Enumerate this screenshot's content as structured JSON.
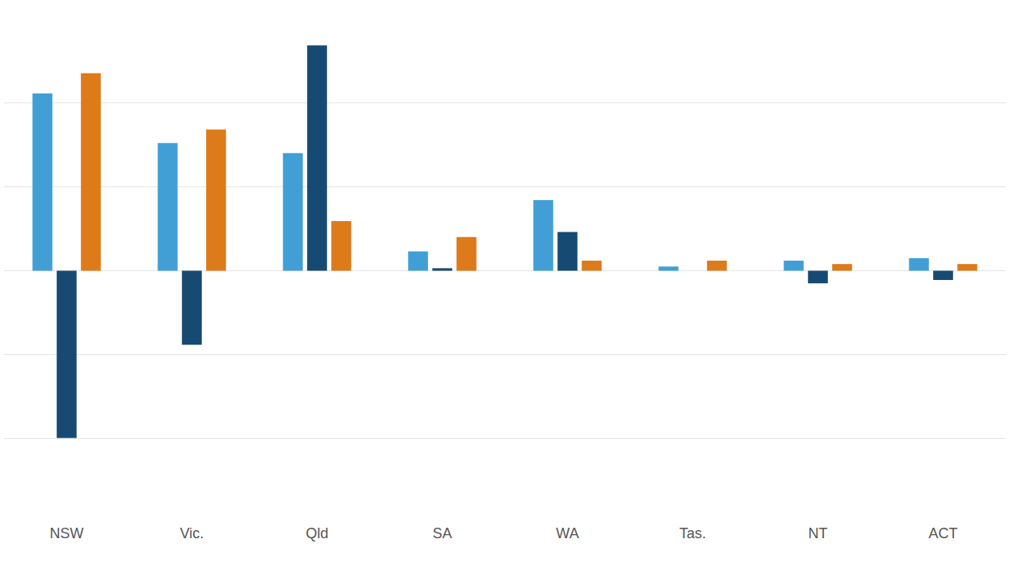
{
  "chart_data": {
    "type": "bar",
    "categories": [
      "NSW",
      "Vic.",
      "Qld",
      "SA",
      "WA",
      "Tas.",
      "NT",
      "ACT"
    ],
    "series": [
      {
        "color": "#419fd6",
        "values": [
          2.11,
          1.52,
          1.4,
          0.23,
          0.84,
          0.05,
          0.12,
          0.15
        ]
      },
      {
        "color": "#174a72",
        "values": [
          -1.99,
          -0.88,
          2.68,
          0.03,
          0.46,
          0,
          -0.15,
          -0.11
        ]
      },
      {
        "color": "#dd7a1a",
        "values": [
          2.35,
          1.68,
          0.59,
          0.4,
          0.12,
          0.12,
          0.08,
          0.08
        ]
      }
    ],
    "ylim": [
      -3,
      3
    ],
    "yticks": [
      -3,
      -2,
      -1,
      0,
      1,
      2,
      3
    ],
    "grid": true,
    "tick_labels": "x"
  }
}
